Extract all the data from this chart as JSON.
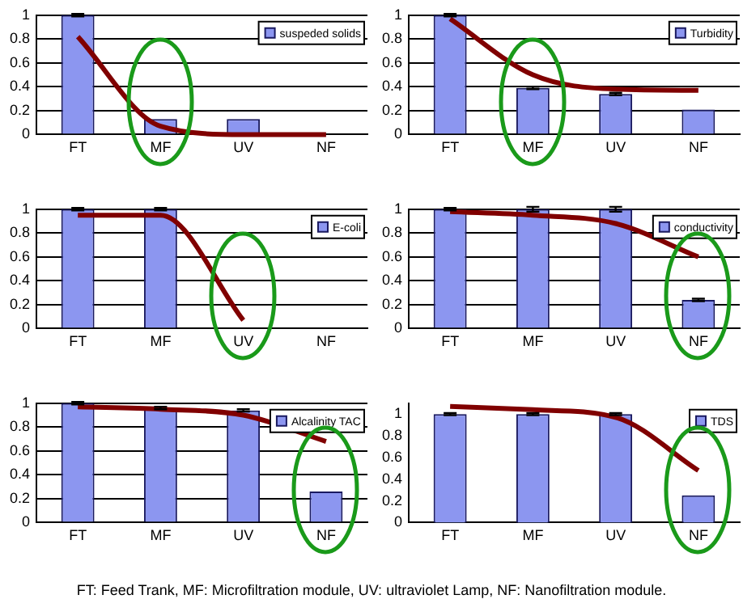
{
  "chart_data": [
    {
      "type": "bar",
      "categories": [
        "FT",
        "MF",
        "UV",
        "NF"
      ],
      "ylim": [
        0,
        1
      ],
      "yticks": [
        0,
        0.2,
        0.4,
        0.6,
        0.8,
        1
      ],
      "grid": "y",
      "legend": "top right",
      "series": [
        {
          "name": "suspeded solids",
          "color": "#8c96f0",
          "values": [
            1,
            0.13,
            0.13,
            0
          ],
          "errors": [
            0.01,
            null,
            null,
            null
          ]
        },
        {
          "type": "line",
          "color": "#800000",
          "values": [
            0.82,
            0.07,
            0,
            0
          ]
        }
      ]
    },
    {
      "type": "bar",
      "categories": [
        "FT",
        "MF",
        "UV",
        "NF"
      ],
      "ylim": [
        0,
        1
      ],
      "yticks": [
        0,
        0.2,
        0.4,
        0.6,
        0.8,
        1
      ],
      "grid": "y",
      "legend": "top right",
      "series": [
        {
          "name": "Turbidity",
          "color": "#8c96f0",
          "values": [
            1,
            0.39,
            0.34,
            0.21
          ],
          "errors": [
            0.01,
            0.01,
            0.01,
            null
          ]
        },
        {
          "type": "line",
          "color": "#800000",
          "values": [
            0.97,
            0.5,
            0.38,
            0.37
          ]
        }
      ]
    },
    {
      "type": "bar",
      "categories": [
        "FT",
        "MF",
        "UV",
        "NF"
      ],
      "ylim": [
        0,
        1
      ],
      "yticks": [
        0,
        0.2,
        0.4,
        0.6,
        0.8,
        1
      ],
      "grid": "y",
      "legend": "top right",
      "series": [
        {
          "name": "E-coli",
          "color": "#8c96f0",
          "values": [
            1,
            1,
            0,
            0
          ],
          "errors": [
            0.01,
            0.01,
            null,
            null
          ]
        },
        {
          "type": "line",
          "color": "#800000",
          "values": [
            0.95,
            0.95,
            0.07,
            null
          ]
        }
      ]
    },
    {
      "type": "bar",
      "categories": [
        "FT",
        "MF",
        "UV",
        "NF"
      ],
      "ylim": [
        0,
        1
      ],
      "yticks": [
        0,
        0.2,
        0.4,
        0.6,
        0.8,
        1
      ],
      "grid": "y",
      "legend": "top right",
      "series": [
        {
          "name": "conductivity",
          "color": "#8c96f0",
          "values": [
            1,
            1,
            1,
            0.24
          ],
          "errors": [
            0.01,
            0.02,
            0.02,
            0.01
          ]
        },
        {
          "type": "line",
          "color": "#800000",
          "values": [
            0.98,
            0.95,
            0.88,
            0.6
          ]
        }
      ]
    },
    {
      "type": "bar",
      "categories": [
        "FT",
        "MF",
        "UV",
        "NF"
      ],
      "ylim": [
        0,
        1
      ],
      "yticks": [
        0,
        0.2,
        0.4,
        0.6,
        0.8,
        1
      ],
      "grid": "y",
      "legend": "top right",
      "series": [
        {
          "name": "Alcalinity TAC",
          "color": "#8c96f0",
          "values": [
            1,
            0.96,
            0.94,
            0.26
          ],
          "errors": [
            0.01,
            0.01,
            0.01,
            null
          ]
        },
        {
          "type": "line",
          "color": "#800000",
          "values": [
            0.97,
            0.95,
            0.9,
            0.68
          ]
        }
      ]
    },
    {
      "type": "bar",
      "categories": [
        "FT",
        "MF",
        "UV",
        "NF"
      ],
      "ylim": [
        0,
        1.1
      ],
      "yticks": [
        0,
        0.2,
        0.4,
        0.6,
        0.8,
        1
      ],
      "grid": false,
      "legend": "top right",
      "annotations": [
        "FT: Feed Trank, MF: Microfiltration module, UV: ultraviolet Lamp, NF: Nanofiltration module."
      ],
      "series": [
        {
          "name": "TDS",
          "color": "#8c96f0",
          "values": [
            1,
            1,
            1,
            0.25
          ],
          "errors": [
            0.01,
            0.01,
            0.01,
            null
          ]
        },
        {
          "type": "line",
          "color": "#800000",
          "values": [
            1.07,
            1.04,
            0.97,
            0.48
          ]
        }
      ]
    }
  ]
}
